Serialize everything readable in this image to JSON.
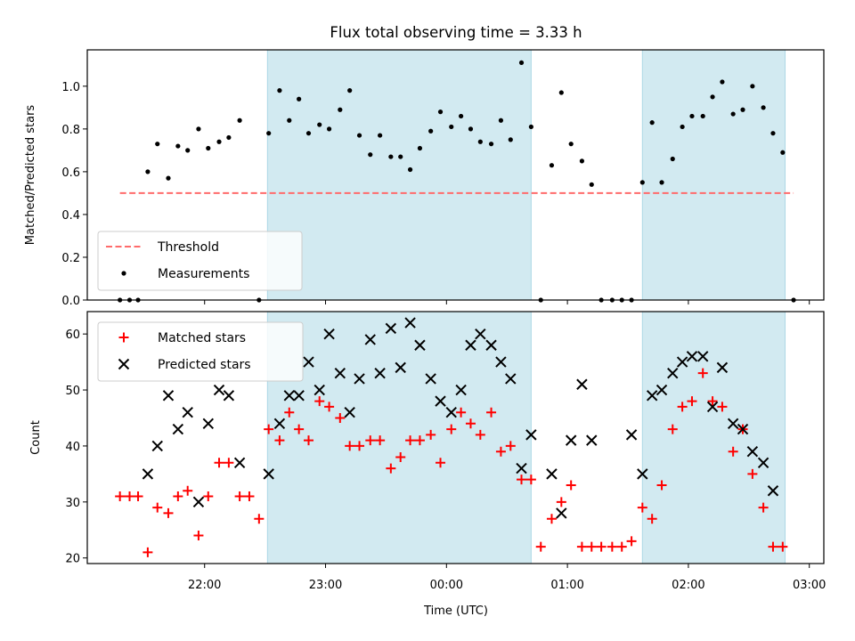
{
  "chart_data": {
    "title": "Flux total observing time = 3.33 h",
    "xlabel": "Time (UTC)",
    "x_unit": "hours (UTC); values past 24 are times after midnight",
    "xlim": [
      21.03,
      27.12
    ],
    "x_ticks": [
      {
        "x": 22,
        "label": "22:00"
      },
      {
        "x": 23,
        "label": "23:00"
      },
      {
        "x": 24,
        "label": "00:00"
      },
      {
        "x": 25,
        "label": "01:00"
      },
      {
        "x": 26,
        "label": "02:00"
      },
      {
        "x": 27,
        "label": "03:00"
      }
    ],
    "shaded_intervals": [
      [
        22.52,
        24.7
      ],
      [
        25.62,
        26.8
      ]
    ],
    "shade_color": "#add8e6",
    "panels": [
      {
        "id": "ratio",
        "type": "scatter",
        "ylabel": "Matched/Predicted stars",
        "ylim": [
          0,
          1.17
        ],
        "y_ticks": [
          0.0,
          0.2,
          0.4,
          0.6,
          0.8,
          1.0
        ],
        "y_tick_labels": [
          "0.0",
          "0.2",
          "0.4",
          "0.6",
          "0.8",
          "1.0"
        ],
        "show_x_tick_labels": false,
        "legend": {
          "position": "lower-left",
          "entries": [
            "Threshold",
            "Measurements"
          ]
        },
        "threshold": {
          "name": "Threshold",
          "value": 0.5,
          "x_range": [
            21.3,
            26.87
          ],
          "color": "#ff6b6b"
        },
        "series": [
          {
            "name": "Measurements",
            "marker": "dot",
            "color": "#000000",
            "points": [
              [
                21.3,
                0.0
              ],
              [
                21.38,
                0.0
              ],
              [
                21.45,
                0.0
              ],
              [
                21.53,
                0.6
              ],
              [
                21.61,
                0.73
              ],
              [
                21.7,
                0.57
              ],
              [
                21.78,
                0.72
              ],
              [
                21.86,
                0.7
              ],
              [
                21.95,
                0.8
              ],
              [
                22.03,
                0.71
              ],
              [
                22.12,
                0.74
              ],
              [
                22.2,
                0.76
              ],
              [
                22.29,
                0.84
              ],
              [
                22.45,
                0.0
              ],
              [
                22.53,
                0.78
              ],
              [
                22.62,
                0.98
              ],
              [
                22.7,
                0.84
              ],
              [
                22.78,
                0.94
              ],
              [
                22.86,
                0.78
              ],
              [
                22.95,
                0.82
              ],
              [
                23.03,
                0.8
              ],
              [
                23.12,
                0.89
              ],
              [
                23.2,
                0.98
              ],
              [
                23.28,
                0.77
              ],
              [
                23.37,
                0.68
              ],
              [
                23.45,
                0.77
              ],
              [
                23.54,
                0.67
              ],
              [
                23.62,
                0.67
              ],
              [
                23.7,
                0.61
              ],
              [
                23.78,
                0.71
              ],
              [
                23.87,
                0.79
              ],
              [
                23.95,
                0.88
              ],
              [
                24.04,
                0.81
              ],
              [
                24.12,
                0.86
              ],
              [
                24.2,
                0.8
              ],
              [
                24.28,
                0.74
              ],
              [
                24.37,
                0.73
              ],
              [
                24.45,
                0.84
              ],
              [
                24.53,
                0.75
              ],
              [
                24.62,
                1.11
              ],
              [
                24.7,
                0.81
              ],
              [
                24.78,
                0.0
              ],
              [
                24.87,
                0.63
              ],
              [
                24.95,
                0.97
              ],
              [
                25.03,
                0.73
              ],
              [
                25.12,
                0.65
              ],
              [
                25.2,
                0.54
              ],
              [
                25.28,
                0.0
              ],
              [
                25.37,
                0.0
              ],
              [
                25.45,
                0.0
              ],
              [
                25.53,
                0.0
              ],
              [
                25.62,
                0.55
              ],
              [
                25.7,
                0.83
              ],
              [
                25.78,
                0.55
              ],
              [
                25.87,
                0.66
              ],
              [
                25.95,
                0.81
              ],
              [
                26.03,
                0.86
              ],
              [
                26.12,
                0.86
              ],
              [
                26.2,
                0.95
              ],
              [
                26.28,
                1.02
              ],
              [
                26.37,
                0.87
              ],
              [
                26.45,
                0.89
              ],
              [
                26.53,
                1.0
              ],
              [
                26.62,
                0.9
              ],
              [
                26.7,
                0.78
              ],
              [
                26.78,
                0.69
              ],
              [
                26.87,
                0.0
              ]
            ]
          }
        ]
      },
      {
        "id": "counts",
        "type": "scatter",
        "ylabel": "Count",
        "ylim": [
          19,
          64
        ],
        "y_ticks": [
          20,
          30,
          40,
          50,
          60
        ],
        "y_tick_labels": [
          "20",
          "30",
          "40",
          "50",
          "60"
        ],
        "show_x_tick_labels": true,
        "legend": {
          "position": "upper-left",
          "entries": [
            "Matched stars",
            "Predicted stars"
          ]
        },
        "series": [
          {
            "name": "Matched stars",
            "marker": "plus",
            "color": "#ff0000",
            "points": [
              [
                21.3,
                31
              ],
              [
                21.38,
                31
              ],
              [
                21.45,
                31
              ],
              [
                21.53,
                21
              ],
              [
                21.61,
                29
              ],
              [
                21.7,
                28
              ],
              [
                21.78,
                31
              ],
              [
                21.86,
                32
              ],
              [
                21.95,
                24
              ],
              [
                22.03,
                31
              ],
              [
                22.12,
                37
              ],
              [
                22.2,
                37
              ],
              [
                22.29,
                31
              ],
              [
                22.37,
                31
              ],
              [
                22.45,
                27
              ],
              [
                22.53,
                43
              ],
              [
                22.62,
                41
              ],
              [
                22.7,
                46
              ],
              [
                22.78,
                43
              ],
              [
                22.86,
                41
              ],
              [
                22.95,
                48
              ],
              [
                23.03,
                47
              ],
              [
                23.12,
                45
              ],
              [
                23.2,
                40
              ],
              [
                23.28,
                40
              ],
              [
                23.37,
                41
              ],
              [
                23.45,
                41
              ],
              [
                23.54,
                36
              ],
              [
                23.62,
                38
              ],
              [
                23.7,
                41
              ],
              [
                23.78,
                41
              ],
              [
                23.87,
                42
              ],
              [
                23.95,
                37
              ],
              [
                24.04,
                43
              ],
              [
                24.12,
                46
              ],
              [
                24.2,
                44
              ],
              [
                24.28,
                42
              ],
              [
                24.37,
                46
              ],
              [
                24.45,
                39
              ],
              [
                24.53,
                40
              ],
              [
                24.62,
                34
              ],
              [
                24.7,
                34
              ],
              [
                24.78,
                22
              ],
              [
                24.87,
                27
              ],
              [
                24.95,
                30
              ],
              [
                25.03,
                33
              ],
              [
                25.12,
                22
              ],
              [
                25.2,
                22
              ],
              [
                25.28,
                22
              ],
              [
                25.37,
                22
              ],
              [
                25.45,
                22
              ],
              [
                25.53,
                23
              ],
              [
                25.62,
                29
              ],
              [
                25.7,
                27
              ],
              [
                25.78,
                33
              ],
              [
                25.87,
                43
              ],
              [
                25.95,
                47
              ],
              [
                26.03,
                48
              ],
              [
                26.12,
                53
              ],
              [
                26.2,
                48
              ],
              [
                26.28,
                47
              ],
              [
                26.37,
                39
              ],
              [
                26.45,
                43
              ],
              [
                26.53,
                35
              ],
              [
                26.62,
                29
              ],
              [
                26.7,
                22
              ],
              [
                26.78,
                22
              ]
            ]
          },
          {
            "name": "Predicted stars",
            "marker": "x",
            "color": "#000000",
            "points": [
              [
                21.53,
                35
              ],
              [
                21.61,
                40
              ],
              [
                21.7,
                49
              ],
              [
                21.78,
                43
              ],
              [
                21.86,
                46
              ],
              [
                21.95,
                30
              ],
              [
                22.03,
                44
              ],
              [
                22.12,
                50
              ],
              [
                22.2,
                49
              ],
              [
                22.29,
                37
              ],
              [
                22.53,
                35
              ],
              [
                22.62,
                44
              ],
              [
                22.7,
                49
              ],
              [
                22.78,
                49
              ],
              [
                22.86,
                55
              ],
              [
                22.95,
                50
              ],
              [
                23.03,
                60
              ],
              [
                23.12,
                53
              ],
              [
                23.2,
                46
              ],
              [
                23.28,
                52
              ],
              [
                23.37,
                59
              ],
              [
                23.45,
                53
              ],
              [
                23.54,
                61
              ],
              [
                23.62,
                54
              ],
              [
                23.7,
                62
              ],
              [
                23.78,
                58
              ],
              [
                23.87,
                52
              ],
              [
                23.95,
                48
              ],
              [
                24.04,
                46
              ],
              [
                24.12,
                50
              ],
              [
                24.2,
                58
              ],
              [
                24.28,
                60
              ],
              [
                24.37,
                58
              ],
              [
                24.45,
                55
              ],
              [
                24.53,
                52
              ],
              [
                24.62,
                36
              ],
              [
                24.7,
                42
              ],
              [
                24.87,
                35
              ],
              [
                24.95,
                28
              ],
              [
                25.03,
                41
              ],
              [
                25.12,
                51
              ],
              [
                25.2,
                41
              ],
              [
                25.53,
                42
              ],
              [
                25.62,
                35
              ],
              [
                25.7,
                49
              ],
              [
                25.78,
                50
              ],
              [
                25.87,
                53
              ],
              [
                25.95,
                55
              ],
              [
                26.03,
                56
              ],
              [
                26.12,
                56
              ],
              [
                26.2,
                47
              ],
              [
                26.28,
                54
              ],
              [
                26.37,
                44
              ],
              [
                26.45,
                43
              ],
              [
                26.53,
                39
              ],
              [
                26.62,
                37
              ],
              [
                26.7,
                32
              ]
            ]
          }
        ]
      }
    ]
  }
}
